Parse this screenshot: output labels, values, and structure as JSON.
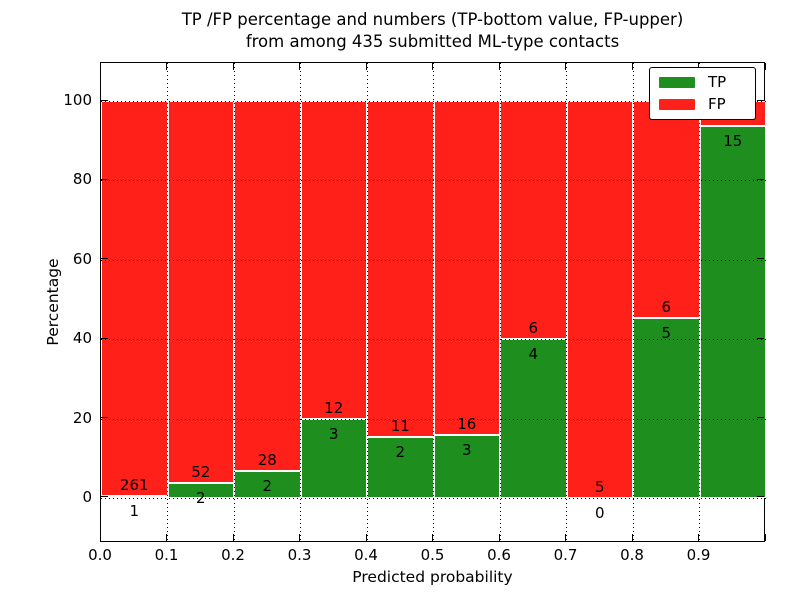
{
  "title": {
    "line1": "TP /FP percentage and numbers (TP-bottom value, FP-upper)",
    "line2": "from among 435 submitted ML-type contacts"
  },
  "chart_data": {
    "type": "bar",
    "stacked": true,
    "normalized_to_percent": true,
    "title": "TP /FP percentage and numbers (TP-bottom value, FP-upper) from among 435 submitted ML-type contacts",
    "xlabel": "Predicted probability",
    "ylabel": "Percentage",
    "total_contacts": 435,
    "bin_width": 0.1,
    "categories": [
      "0.0-0.1",
      "0.1-0.2",
      "0.2-0.3",
      "0.3-0.4",
      "0.4-0.5",
      "0.5-0.6",
      "0.6-0.7",
      "0.7-0.8",
      "0.8-0.9",
      "0.9-1.0"
    ],
    "series": [
      {
        "name": "TP",
        "color": "#1e8e1e",
        "counts": [
          1,
          2,
          2,
          3,
          2,
          3,
          4,
          0,
          5,
          15
        ]
      },
      {
        "name": "FP",
        "color": "#ff2019",
        "counts": [
          261,
          52,
          28,
          12,
          11,
          16,
          6,
          5,
          6,
          1
        ]
      }
    ],
    "tp_percent": [
      0.38,
      3.7,
      6.67,
      20.0,
      15.38,
      15.79,
      40.0,
      0.0,
      45.45,
      93.75
    ],
    "xlim": [
      0.0,
      1.0
    ],
    "ylim": [
      -11.35,
      109.6
    ],
    "xticks": [
      {
        "v": 0.0,
        "label": "0.0"
      },
      {
        "v": 0.1,
        "label": "0.1"
      },
      {
        "v": 0.2,
        "label": "0.2"
      },
      {
        "v": 0.3,
        "label": "0.3"
      },
      {
        "v": 0.4,
        "label": "0.4"
      },
      {
        "v": 0.5,
        "label": "0.5"
      },
      {
        "v": 0.6,
        "label": "0.6"
      },
      {
        "v": 0.7,
        "label": "0.7"
      },
      {
        "v": 0.8,
        "label": "0.8"
      },
      {
        "v": 0.9,
        "label": "0.9"
      },
      {
        "v": 1.0,
        "label": ""
      }
    ],
    "yticks": [
      {
        "v": 0,
        "label": "0"
      },
      {
        "v": 20,
        "label": "20"
      },
      {
        "v": 40,
        "label": "40"
      },
      {
        "v": 60,
        "label": "60"
      },
      {
        "v": 80,
        "label": "80"
      },
      {
        "v": 100,
        "label": "100"
      }
    ],
    "grid": "dotted-black-over-bars",
    "bar_edge_color": "#ffffff",
    "legend": {
      "position": "upper-right",
      "entries": [
        {
          "label": "TP",
          "color": "#1e8e1e"
        },
        {
          "label": "FP",
          "color": "#ff2019"
        }
      ]
    }
  }
}
